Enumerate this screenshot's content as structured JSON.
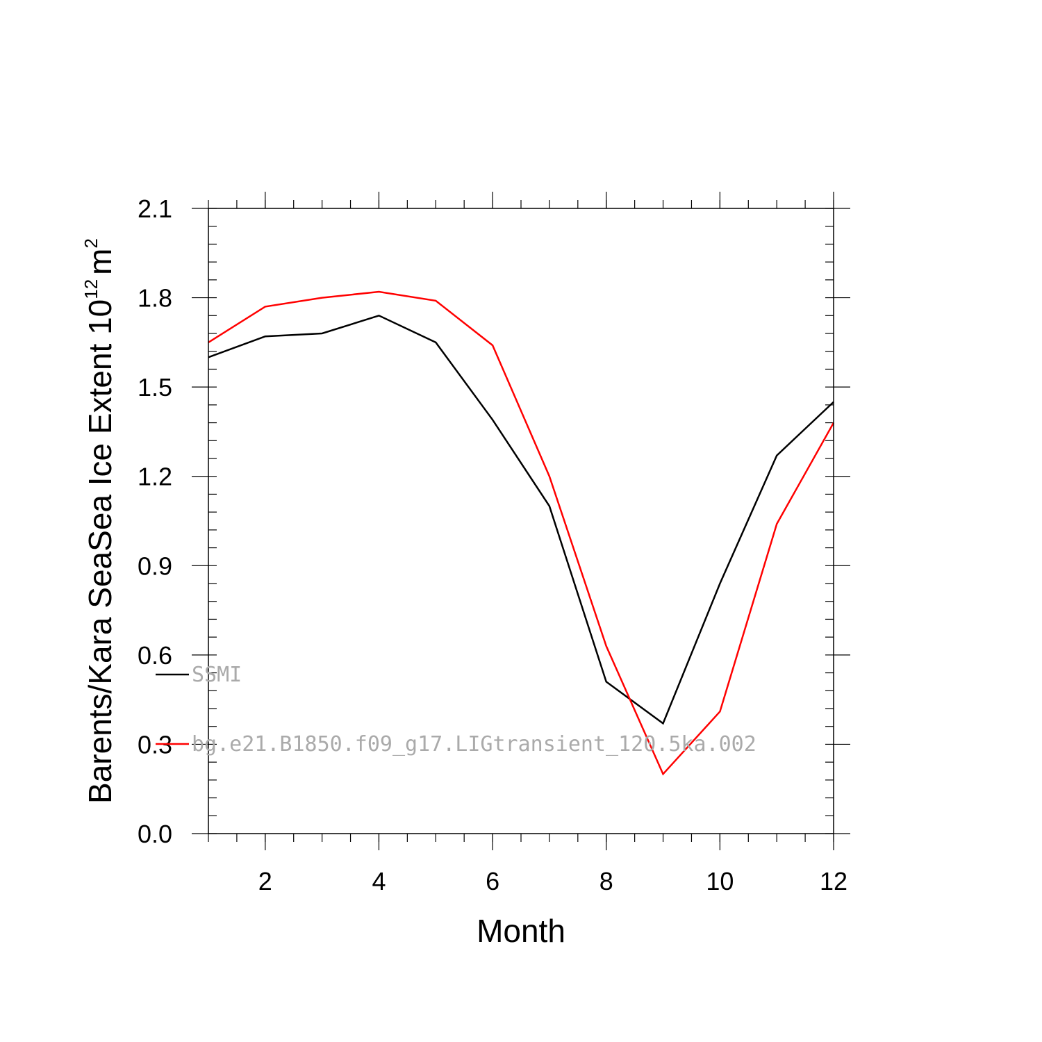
{
  "chart_data": {
    "type": "line",
    "title": "",
    "xlabel": "Month",
    "ylabel": "Barents/Kara SeaSea Ice Extent 10",
    "ylabel_exponent": "12",
    "ylabel_unit": "m",
    "ylabel_unit_exponent": "2",
    "xlim": [
      1,
      12
    ],
    "ylim": [
      0.0,
      2.1
    ],
    "x_ticks": [
      2,
      4,
      6,
      8,
      10,
      12
    ],
    "x_tick_labels": [
      "2",
      "4",
      "6",
      "8",
      "10",
      "12"
    ],
    "y_ticks": [
      0.0,
      0.3,
      0.6,
      0.9,
      1.2,
      1.5,
      1.8,
      2.1
    ],
    "y_tick_labels": [
      "0.0",
      "0.3",
      "0.6",
      "0.9",
      "1.2",
      "1.5",
      "1.8",
      "2.1"
    ],
    "grid": false,
    "legend_position": "inside-left",
    "x": [
      1,
      2,
      3,
      4,
      5,
      6,
      7,
      8,
      9,
      10,
      11,
      12
    ],
    "series": [
      {
        "name": "SSMI",
        "color": "#000000",
        "values": [
          1.6,
          1.67,
          1.68,
          1.74,
          1.65,
          1.39,
          1.1,
          0.51,
          0.37,
          0.84,
          1.27,
          1.45
        ]
      },
      {
        "name": "bg.e21.B1850.f09_g17.LIGtransient_120.5ka.002",
        "color": "#ff0000",
        "values": [
          1.65,
          1.77,
          1.8,
          1.82,
          1.79,
          1.64,
          1.2,
          0.63,
          0.2,
          0.41,
          1.04,
          1.38
        ]
      }
    ]
  }
}
